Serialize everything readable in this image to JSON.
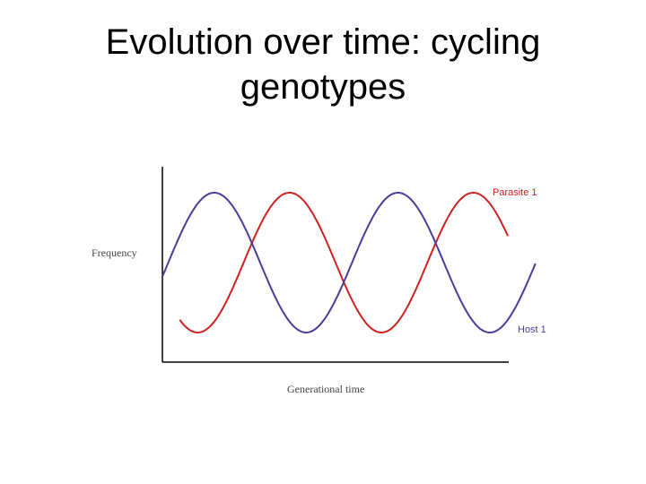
{
  "slide": {
    "title_line1": "Evolution over time: cycling",
    "title_line2": "genotypes"
  },
  "chart_data": {
    "type": "line",
    "title": "Evolution over time: cycling genotypes",
    "xlabel": "Generational time",
    "ylabel": "Frequency",
    "grid": false,
    "series": [
      {
        "name": "Parasite 1",
        "color": "#cc2222",
        "phase_shift": 0.41,
        "span": [
          0.05,
          1.0
        ]
      },
      {
        "name": "Host 1",
        "color": "#4a3c99",
        "phase_shift": 0.0,
        "span": [
          0.0,
          1.08
        ]
      }
    ]
  }
}
